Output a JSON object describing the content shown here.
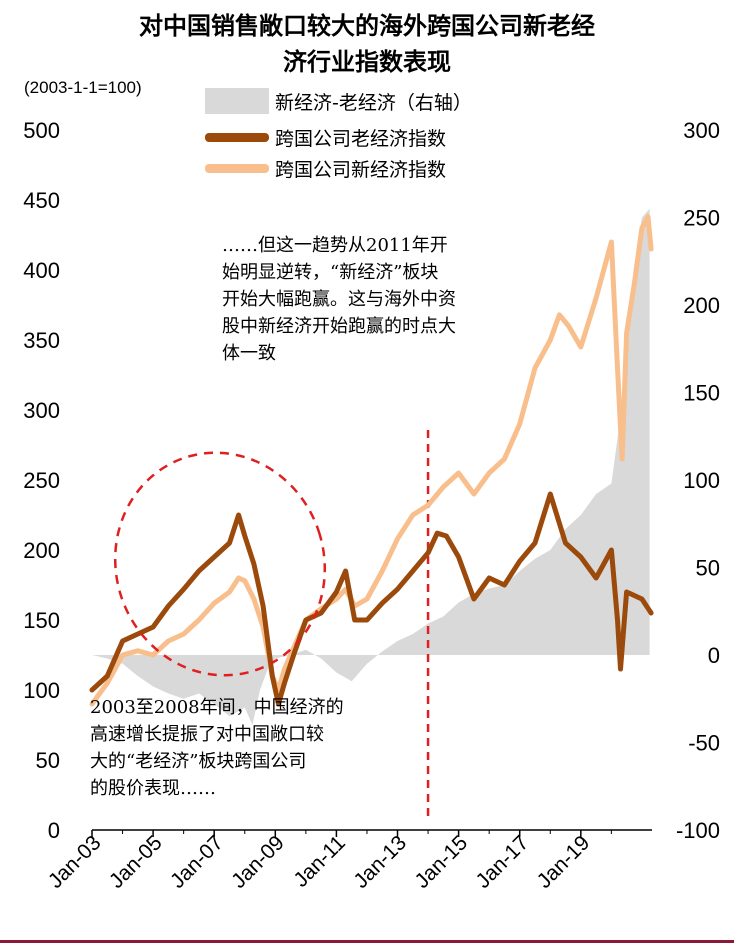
{
  "title_line1": "对中国销售敞口较大的海外跨国公司新老经",
  "title_line2": "济行业指数表现",
  "base_note": "(2003-1-1=100)",
  "annotation_top": "……但这一趋势从2011年开\n始明显逆转，“新经济”板块\n开始大幅跑赢。这与海外中资\n股中新经济开始跑赢的时点大\n体一致",
  "annotation_bottom": "2003至2008年间，中国经济的\n高速增长提振了对中国敞口较\n大的“老经济”板块跨国公司\n的股价表现……",
  "colors": {
    "spread": "#d9d9d9",
    "old": "#9c4a0c",
    "new": "#f8bf8c",
    "guide": "#e02020"
  },
  "chart_data": {
    "type": "line",
    "x_tick_labels": [
      "Jan-03",
      "Jan-05",
      "Jan-07",
      "Jan-09",
      "Jan-11",
      "Jan-13",
      "Jan-15",
      "Jan-17",
      "Jan-19"
    ],
    "y_left_ticks": [
      0,
      50,
      100,
      150,
      200,
      250,
      300,
      350,
      400,
      450,
      500
    ],
    "y_right_ticks": [
      -100,
      -50,
      0,
      50,
      100,
      150,
      200,
      250,
      300
    ],
    "ylim_left": [
      0,
      500
    ],
    "ylim_right": [
      -100,
      300
    ],
    "legend_placement": "top-center",
    "vertical_marker_x": 2014.0,
    "series": [
      {
        "name": "新经济-老经济（右轴）",
        "axis": "right",
        "kind": "area",
        "x": [
          2003.0,
          2003.5,
          2004.0,
          2004.5,
          2005.0,
          2005.5,
          2006.0,
          2006.5,
          2007.0,
          2007.5,
          2008.0,
          2008.25,
          2008.5,
          2008.75,
          2009.0,
          2009.5,
          2010.0,
          2010.5,
          2011.0,
          2011.5,
          2012.0,
          2012.5,
          2013.0,
          2013.5,
          2014.0,
          2014.5,
          2015.0,
          2015.5,
          2016.0,
          2016.5,
          2017.0,
          2017.5,
          2018.0,
          2018.5,
          2019.0,
          2019.5,
          2020.0,
          2020.25,
          2020.5,
          2020.75,
          2021.0,
          2021.25
        ],
        "values": [
          0,
          -2,
          -5,
          -12,
          -18,
          -22,
          -25,
          -22,
          -28,
          -35,
          -30,
          -40,
          -20,
          -8,
          -2,
          0,
          3,
          -2,
          -10,
          -15,
          -5,
          2,
          8,
          12,
          18,
          22,
          30,
          35,
          38,
          40,
          48,
          55,
          60,
          72,
          80,
          92,
          98,
          130,
          175,
          220,
          250,
          255
        ]
      },
      {
        "name": "跨国公司老经济指数",
        "axis": "left",
        "kind": "line",
        "x": [
          2003.0,
          2003.5,
          2004.0,
          2004.5,
          2005.0,
          2005.5,
          2006.0,
          2006.5,
          2007.0,
          2007.5,
          2007.8,
          2008.0,
          2008.3,
          2008.6,
          2008.9,
          2009.1,
          2009.3,
          2009.6,
          2010.0,
          2010.5,
          2011.0,
          2011.3,
          2011.6,
          2012.0,
          2012.5,
          2013.0,
          2013.5,
          2014.0,
          2014.3,
          2014.6,
          2015.0,
          2015.5,
          2016.0,
          2016.5,
          2017.0,
          2017.5,
          2018.0,
          2018.5,
          2019.0,
          2019.5,
          2020.0,
          2020.2,
          2020.3,
          2020.5,
          2021.0,
          2021.3
        ],
        "values": [
          100,
          110,
          135,
          140,
          145,
          160,
          172,
          185,
          195,
          205,
          225,
          210,
          190,
          160,
          110,
          90,
          105,
          125,
          150,
          155,
          170,
          185,
          150,
          150,
          162,
          172,
          185,
          198,
          212,
          210,
          195,
          165,
          180,
          175,
          192,
          205,
          240,
          205,
          195,
          180,
          200,
          150,
          115,
          170,
          165,
          155
        ]
      },
      {
        "name": "跨国公司新经济指数",
        "axis": "left",
        "kind": "line",
        "x": [
          2003.0,
          2003.5,
          2004.0,
          2004.5,
          2005.0,
          2005.5,
          2006.0,
          2006.5,
          2007.0,
          2007.5,
          2007.8,
          2008.0,
          2008.3,
          2008.6,
          2008.9,
          2009.1,
          2009.3,
          2009.6,
          2010.0,
          2010.5,
          2011.0,
          2011.3,
          2011.6,
          2012.0,
          2012.5,
          2013.0,
          2013.5,
          2014.0,
          2014.5,
          2015.0,
          2015.5,
          2016.0,
          2016.5,
          2017.0,
          2017.5,
          2018.0,
          2018.3,
          2018.6,
          2019.0,
          2019.5,
          2020.0,
          2020.2,
          2020.35,
          2020.5,
          2020.75,
          2021.0,
          2021.2,
          2021.3
        ],
        "values": [
          90,
          105,
          125,
          128,
          125,
          135,
          140,
          150,
          162,
          170,
          180,
          178,
          165,
          145,
          110,
          100,
          115,
          130,
          150,
          158,
          165,
          172,
          160,
          165,
          185,
          208,
          225,
          232,
          245,
          255,
          240,
          255,
          265,
          290,
          330,
          350,
          368,
          360,
          345,
          380,
          420,
          330,
          265,
          355,
          390,
          430,
          438,
          415
        ]
      }
    ]
  }
}
